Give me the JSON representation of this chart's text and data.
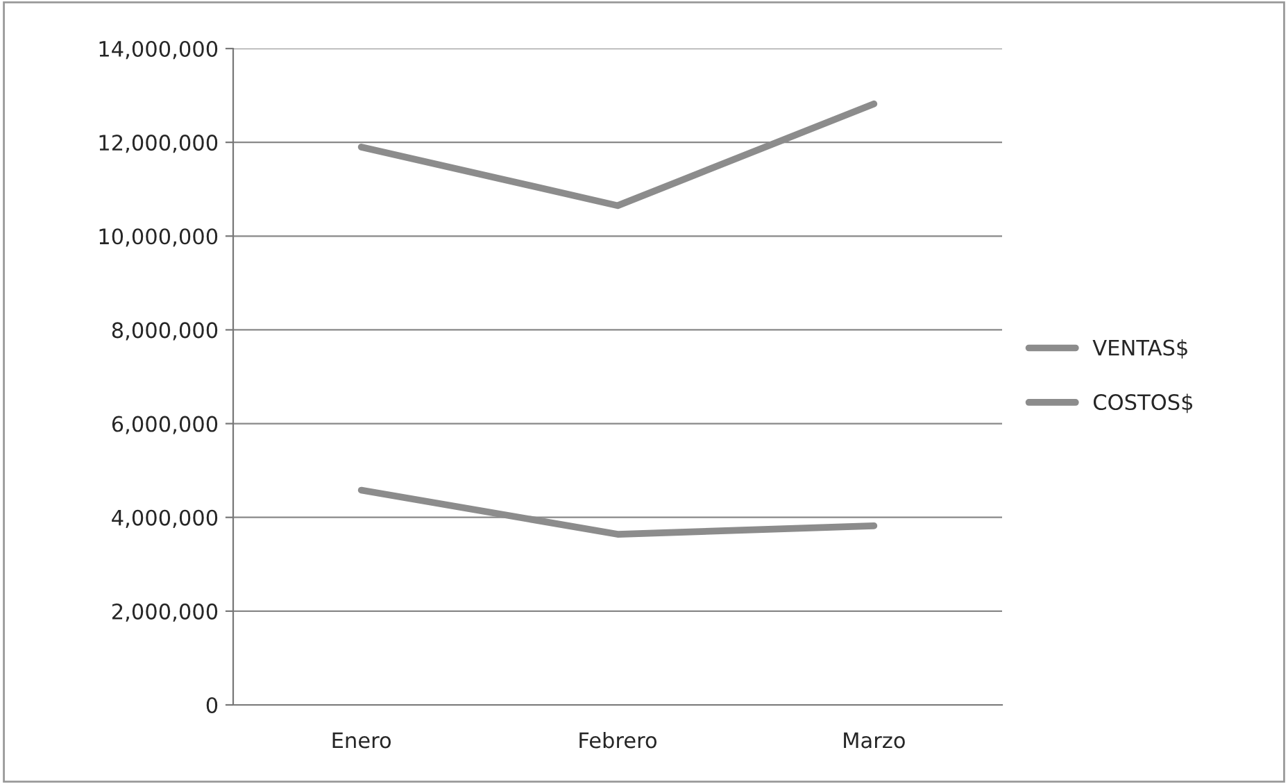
{
  "chart_data": {
    "type": "line",
    "categories": [
      "Enero",
      "Febrero",
      "Marzo"
    ],
    "series": [
      {
        "name": "VENTAS$",
        "color": "#8c8c8c",
        "values": [
          11900000,
          10650000,
          12820000
        ]
      },
      {
        "name": "COSTOS$",
        "color": "#8c8c8c",
        "values": [
          4580000,
          3640000,
          3820000
        ]
      }
    ],
    "ylim": [
      0,
      14000000
    ],
    "yticks": [
      0,
      {
        "value": 2000000,
        "label": "2,000,000"
      },
      {
        "value": 4000000,
        "label": "4,000,000"
      },
      {
        "value": 6000000,
        "label": "6,000,000"
      },
      {
        "value": 8000000,
        "label": "8,000,000"
      },
      {
        "value": 10000000,
        "label": "10,000,000"
      },
      {
        "value": 12000000,
        "label": "12,000,000"
      },
      {
        "value": 14000000,
        "label": "14,000,000"
      }
    ],
    "grid": "y",
    "legend": "right",
    "marker": "none",
    "line_style": "solid"
  }
}
